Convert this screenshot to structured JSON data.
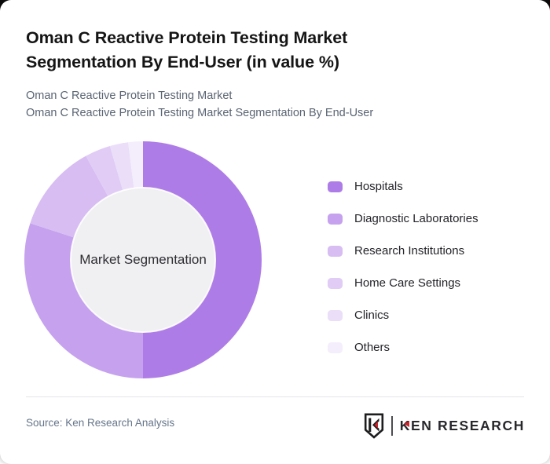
{
  "header": {
    "title": "Oman C Reactive Protein Testing Market Segmentation By End-User (in value %)",
    "subtitle_lines": [
      "Oman C Reactive Protein Testing Market",
      "Oman C Reactive Protein Testing Market Segmentation By End-User"
    ]
  },
  "chart_data": {
    "type": "pie",
    "variant": "donut",
    "title": "Oman C Reactive Protein Testing Market Segmentation By End-User (in value %)",
    "center_label": "Market Segmentation",
    "categories": [
      "Hospitals",
      "Diagnostic Laboratories",
      "Research Institutions",
      "Home Care Settings",
      "Clinics",
      "Others"
    ],
    "values_pct_estimated": [
      50,
      30,
      12,
      3.5,
      2.5,
      2
    ],
    "colors": [
      "#ae7ce6",
      "#c5a1ee",
      "#d7bdf2",
      "#e0ccf5",
      "#eadef9",
      "#f4eefc"
    ],
    "start_angle_deg": 0,
    "direction": "clockwise",
    "legend_position": "right",
    "data_labels": false,
    "hole_fill": "#f0eff1",
    "hole_ratio": 0.61
  },
  "footer": {
    "source": "Source: Ken Research Analysis",
    "logo_text": "KEN RESEARCH"
  },
  "colors": {
    "accent_red": "#c9252c",
    "card_background": "#ffffff",
    "page_background": "#0b0b0b",
    "subtitle_gray": "#5a6473"
  }
}
